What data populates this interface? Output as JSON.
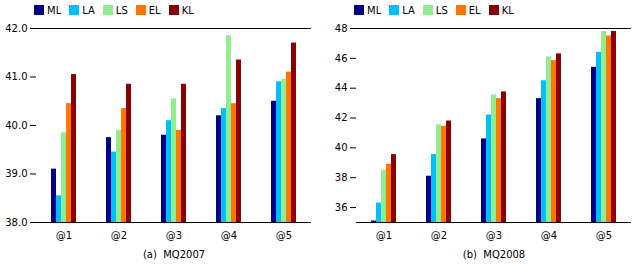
{
  "chart_data": [
    {
      "type": "bar",
      "xlabel": "(a)  MQ2007",
      "categories": [
        "@1",
        "@2",
        "@3",
        "@4",
        "@5"
      ],
      "series": [
        {
          "name": "ML",
          "color": "#00008B",
          "values": [
            39.1,
            39.75,
            39.8,
            40.2,
            40.5
          ]
        },
        {
          "name": "LA",
          "color": "#00BFFF",
          "values": [
            38.55,
            39.45,
            40.1,
            40.35,
            40.9
          ]
        },
        {
          "name": "LS",
          "color": "#90EE90",
          "values": [
            39.85,
            39.9,
            40.55,
            41.85,
            40.95
          ]
        },
        {
          "name": "EL",
          "color": "#FF7700",
          "values": [
            40.45,
            40.35,
            39.9,
            40.45,
            41.1
          ]
        },
        {
          "name": "KL",
          "color": "#8B0000",
          "values": [
            41.05,
            40.85,
            40.85,
            41.35,
            41.7
          ]
        }
      ],
      "ylim": [
        38,
        42
      ],
      "yticks": [
        38,
        39,
        40,
        41,
        42
      ],
      "grid": false,
      "legend": "upper left"
    },
    {
      "type": "bar",
      "xlabel": "(b)  MQ2008",
      "categories": [
        "@1",
        "@2",
        "@3",
        "@4",
        "@5"
      ],
      "series": [
        {
          "name": "ML",
          "color": "#00008B",
          "values": [
            35.1,
            38.1,
            40.6,
            43.3,
            45.4
          ]
        },
        {
          "name": "LA",
          "color": "#00BFFF",
          "values": [
            36.3,
            39.55,
            42.2,
            44.5,
            46.4
          ]
        },
        {
          "name": "LS",
          "color": "#90EE90",
          "values": [
            38.5,
            41.55,
            43.55,
            46.1,
            47.8
          ]
        },
        {
          "name": "EL",
          "color": "#FF7700",
          "values": [
            38.9,
            41.45,
            43.3,
            45.85,
            47.5
          ]
        },
        {
          "name": "KL",
          "color": "#8B0000",
          "values": [
            39.55,
            41.8,
            43.75,
            46.3,
            47.8
          ]
        }
      ],
      "ylim": [
        35,
        48
      ],
      "yticks": [
        36,
        38,
        40,
        42,
        44,
        46,
        48
      ],
      "grid": false,
      "legend": "upper left"
    }
  ]
}
